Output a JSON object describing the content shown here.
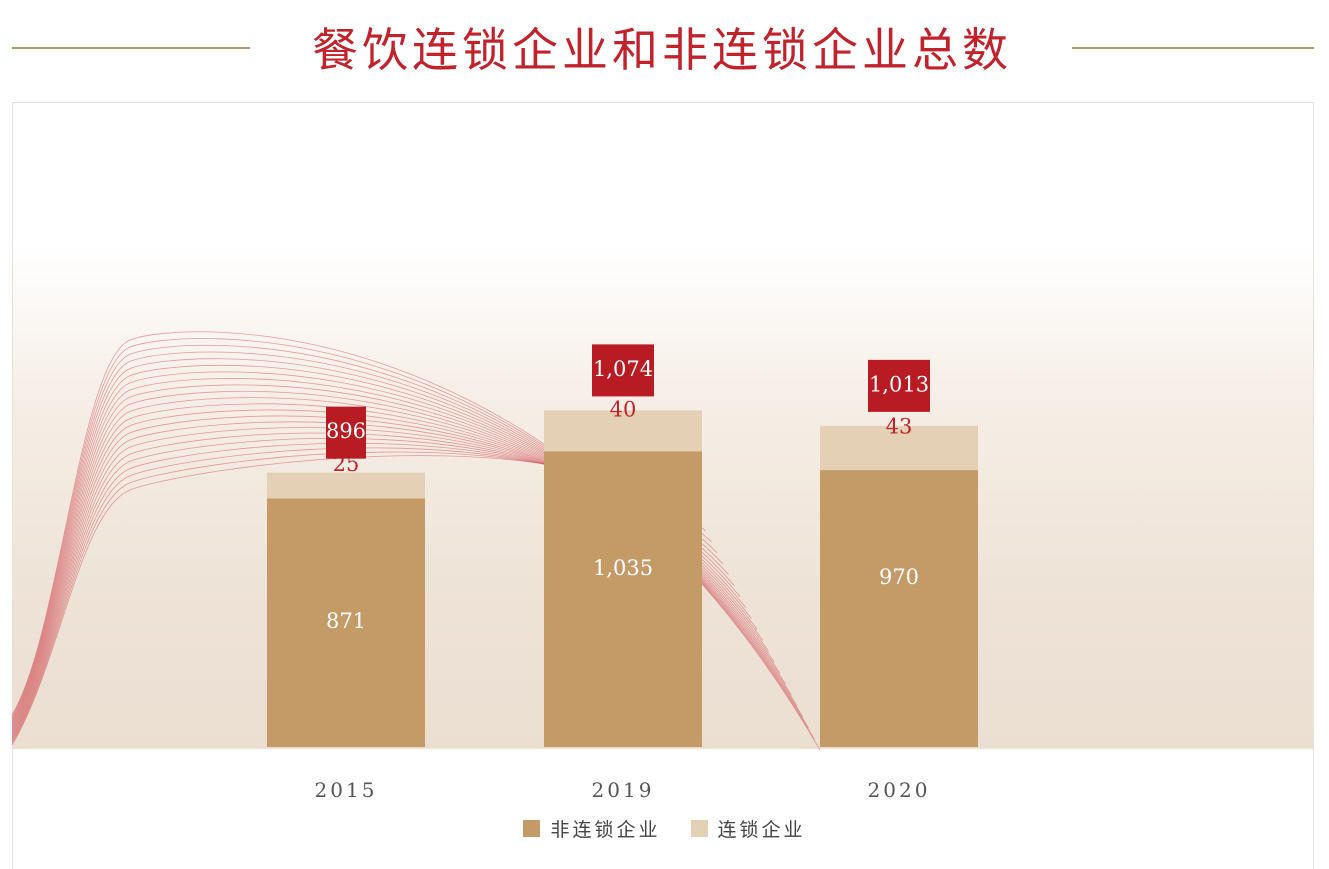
{
  "header": {
    "title": "餐饮连锁企业和非连锁企业总数"
  },
  "colors": {
    "title": "#c0232b",
    "non_chain": "#c49a67",
    "chain": "#e4d0b4",
    "total_box": "#b81c22",
    "chain_label": "#c0232b",
    "non_chain_label": "#ffffff"
  },
  "chart_data": {
    "type": "bar",
    "stacked": true,
    "title": "餐饮连锁企业和非连锁企业总数",
    "categories": [
      "2015",
      "2019",
      "2020"
    ],
    "series": [
      {
        "name": "非连锁企业",
        "values": [
          871,
          1035,
          970
        ]
      },
      {
        "name": "连锁企业",
        "values": [
          25,
          40,
          43
        ]
      }
    ],
    "totals": [
      896,
      1074,
      1013
    ],
    "total_labels": [
      "896",
      "1,074",
      "1,013"
    ],
    "value_labels": [
      [
        "871",
        "1,035",
        "970"
      ],
      [
        "25",
        "40",
        "43"
      ]
    ],
    "legend_position": "bottom",
    "grid": false
  }
}
